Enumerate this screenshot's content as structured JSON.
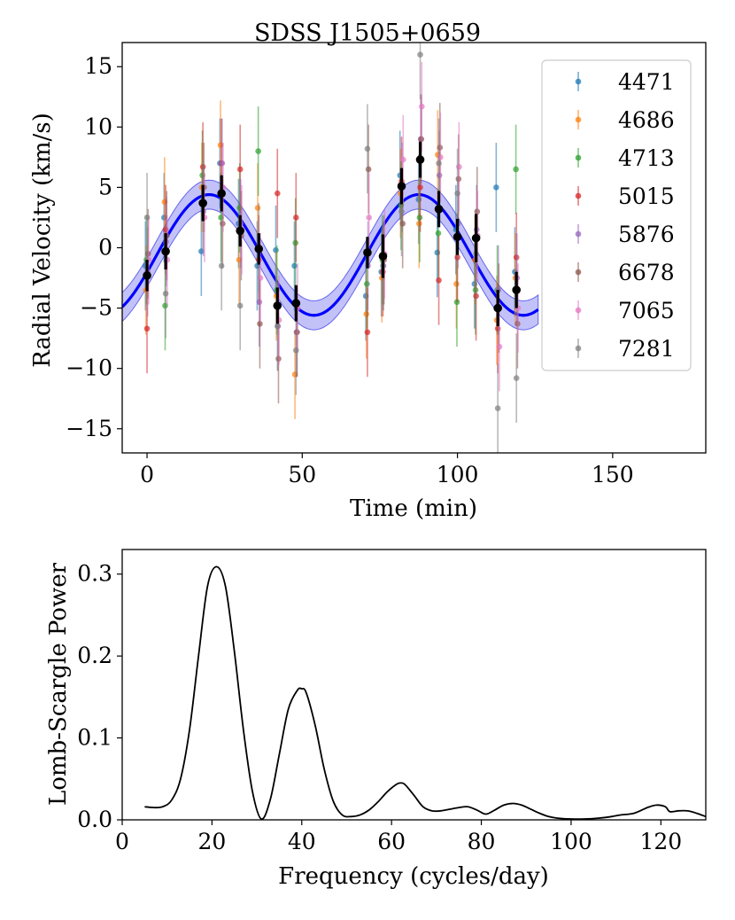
{
  "chart_data": [
    {
      "type": "scatter",
      "title": "SDSS J1505+0659",
      "xlabel": "Time (min)",
      "ylabel": "Radial Velocity (km/s)",
      "xlim": [
        -8,
        180
      ],
      "ylim": [
        -17,
        17
      ],
      "xticks": [
        0,
        50,
        100,
        150
      ],
      "yticks": [
        -15,
        -10,
        -5,
        0,
        5,
        10,
        15
      ],
      "legend_position": "top-right",
      "times": [
        0,
        6,
        18,
        24,
        30,
        36,
        42,
        48,
        71,
        76,
        82,
        88,
        94,
        100,
        106,
        113,
        119
      ],
      "series": [
        {
          "name": "4471",
          "color": "#1f77b4",
          "values": [
            -1.5,
            2.5,
            -0.3,
            7.0,
            2.0,
            -1.5,
            -0.2,
            -1.5,
            -4.0,
            -2.0,
            6.0,
            4.0,
            -0.4,
            1.5,
            -3.0,
            5.0,
            -2.0
          ]
        },
        {
          "name": "4686",
          "color": "#ff7f0e",
          "values": [
            -3.5,
            3.8,
            5.0,
            8.5,
            -1.0,
            3.3,
            -4.0,
            -10.5,
            -5.5,
            -2.5,
            4.5,
            2.0,
            7.7,
            -3.0,
            -1.0,
            -6.0,
            -2.5
          ]
        },
        {
          "name": "4713",
          "color": "#2ca02c",
          "values": [
            -1.0,
            -4.8,
            6.0,
            2.5,
            3.3,
            8.0,
            -3.5,
            0.4,
            -3.0,
            -1.0,
            3.5,
            2.5,
            1.2,
            -4.5,
            -3.5,
            -3.5,
            6.5
          ]
        },
        {
          "name": "5015",
          "color": "#d62728",
          "values": [
            -6.7,
            1.5,
            6.7,
            7.0,
            6.5,
            -1.0,
            4.5,
            2.5,
            -7.0,
            -2.0,
            5.5,
            5.0,
            -2.7,
            -0.8,
            -4.0,
            -6.7,
            -0.8
          ]
        },
        {
          "name": "5876",
          "color": "#9467bd",
          "values": [
            -2.0,
            0.5,
            3.0,
            7.0,
            2.0,
            -4.5,
            -6.5,
            -7.0,
            -1.5,
            -1.5,
            5.0,
            9.0,
            6.0,
            2.0,
            1.5,
            -3.5,
            -2.5
          ]
        },
        {
          "name": "6678",
          "color": "#8c564b",
          "values": [
            -0.5,
            1.0,
            5.0,
            2.0,
            1.0,
            -6.3,
            -9.2,
            -7.0,
            6.5,
            -1.0,
            2.0,
            9.0,
            8.3,
            5.7,
            3.0,
            -5.0,
            -6.3
          ]
        },
        {
          "name": "7065",
          "color": "#e377c2",
          "values": [
            -1.0,
            -1.0,
            2.5,
            5.0,
            1.5,
            -2.5,
            -6.0,
            -5.0,
            2.5,
            -0.5,
            7.3,
            11.7,
            7.5,
            6.7,
            1.0,
            -8.2,
            -5.0
          ]
        },
        {
          "name": "7281",
          "color": "#7f7f7f",
          "values": [
            2.5,
            -3.8,
            3.5,
            -1.5,
            -4.8,
            0.0,
            -6.5,
            -8.5,
            8.2,
            -1.5,
            3.0,
            16.0,
            7.0,
            4.5,
            -0.5,
            -13.3,
            -10.8
          ]
        }
      ],
      "mean": {
        "color": "#000000",
        "values": [
          -2.3,
          -0.3,
          3.7,
          4.5,
          1.4,
          -0.1,
          -4.8,
          -4.6,
          -0.4,
          -0.7,
          5.1,
          7.3,
          3.2,
          0.9,
          0.8,
          -5.0,
          -3.5
        ],
        "errors": [
          1.3,
          1.5,
          1.5,
          1.5,
          1.3,
          1.3,
          1.5,
          1.5,
          1.3,
          1.8,
          1.5,
          1.5,
          1.5,
          1.5,
          2.0,
          1.5,
          1.5
        ]
      },
      "model": {
        "color": "#0000ff",
        "band_color": "#6666ee",
        "amplitude": 5.0,
        "period_min": 67.5,
        "phase_peak_min": 20.0,
        "offset": -0.6,
        "band_halfwidth": 1.2,
        "x_range": [
          -8,
          126
        ]
      }
    },
    {
      "type": "line",
      "xlabel": "Frequency (cycles/day)",
      "ylabel": "Lomb-Scargle Power",
      "xlim": [
        0,
        130
      ],
      "ylim": [
        0,
        0.33
      ],
      "xticks": [
        0,
        20,
        40,
        60,
        80,
        100,
        120
      ],
      "yticks": [
        0.0,
        0.1,
        0.2,
        0.3
      ],
      "ytick_labels": [
        "0.0",
        "0.1",
        "0.2",
        "0.3"
      ],
      "color": "#000000",
      "x": [
        5,
        7,
        9,
        11,
        13,
        15,
        17,
        19,
        21,
        23,
        25,
        27,
        29,
        31,
        33,
        35,
        37,
        39,
        40,
        41,
        43,
        45,
        47,
        49,
        51,
        53,
        55,
        57,
        59,
        61,
        62,
        63,
        65,
        67,
        69,
        71,
        73,
        75,
        77,
        79,
        81,
        83,
        85,
        87,
        89,
        91,
        93,
        95,
        97,
        100,
        103,
        106,
        109,
        111,
        114,
        117,
        119,
        121,
        122,
        124,
        126,
        128,
        130
      ],
      "y": [
        0.016,
        0.015,
        0.016,
        0.024,
        0.05,
        0.11,
        0.2,
        0.285,
        0.309,
        0.285,
        0.205,
        0.11,
        0.035,
        0.001,
        0.025,
        0.08,
        0.135,
        0.158,
        0.16,
        0.155,
        0.115,
        0.062,
        0.023,
        0.006,
        0.004,
        0.006,
        0.012,
        0.022,
        0.034,
        0.043,
        0.045,
        0.043,
        0.03,
        0.016,
        0.011,
        0.011,
        0.013,
        0.015,
        0.016,
        0.012,
        0.007,
        0.012,
        0.018,
        0.02,
        0.018,
        0.013,
        0.008,
        0.004,
        0.002,
        0.001,
        0.001,
        0.002,
        0.004,
        0.006,
        0.008,
        0.015,
        0.018,
        0.016,
        0.01,
        0.011,
        0.011,
        0.008,
        0.004
      ]
    }
  ]
}
